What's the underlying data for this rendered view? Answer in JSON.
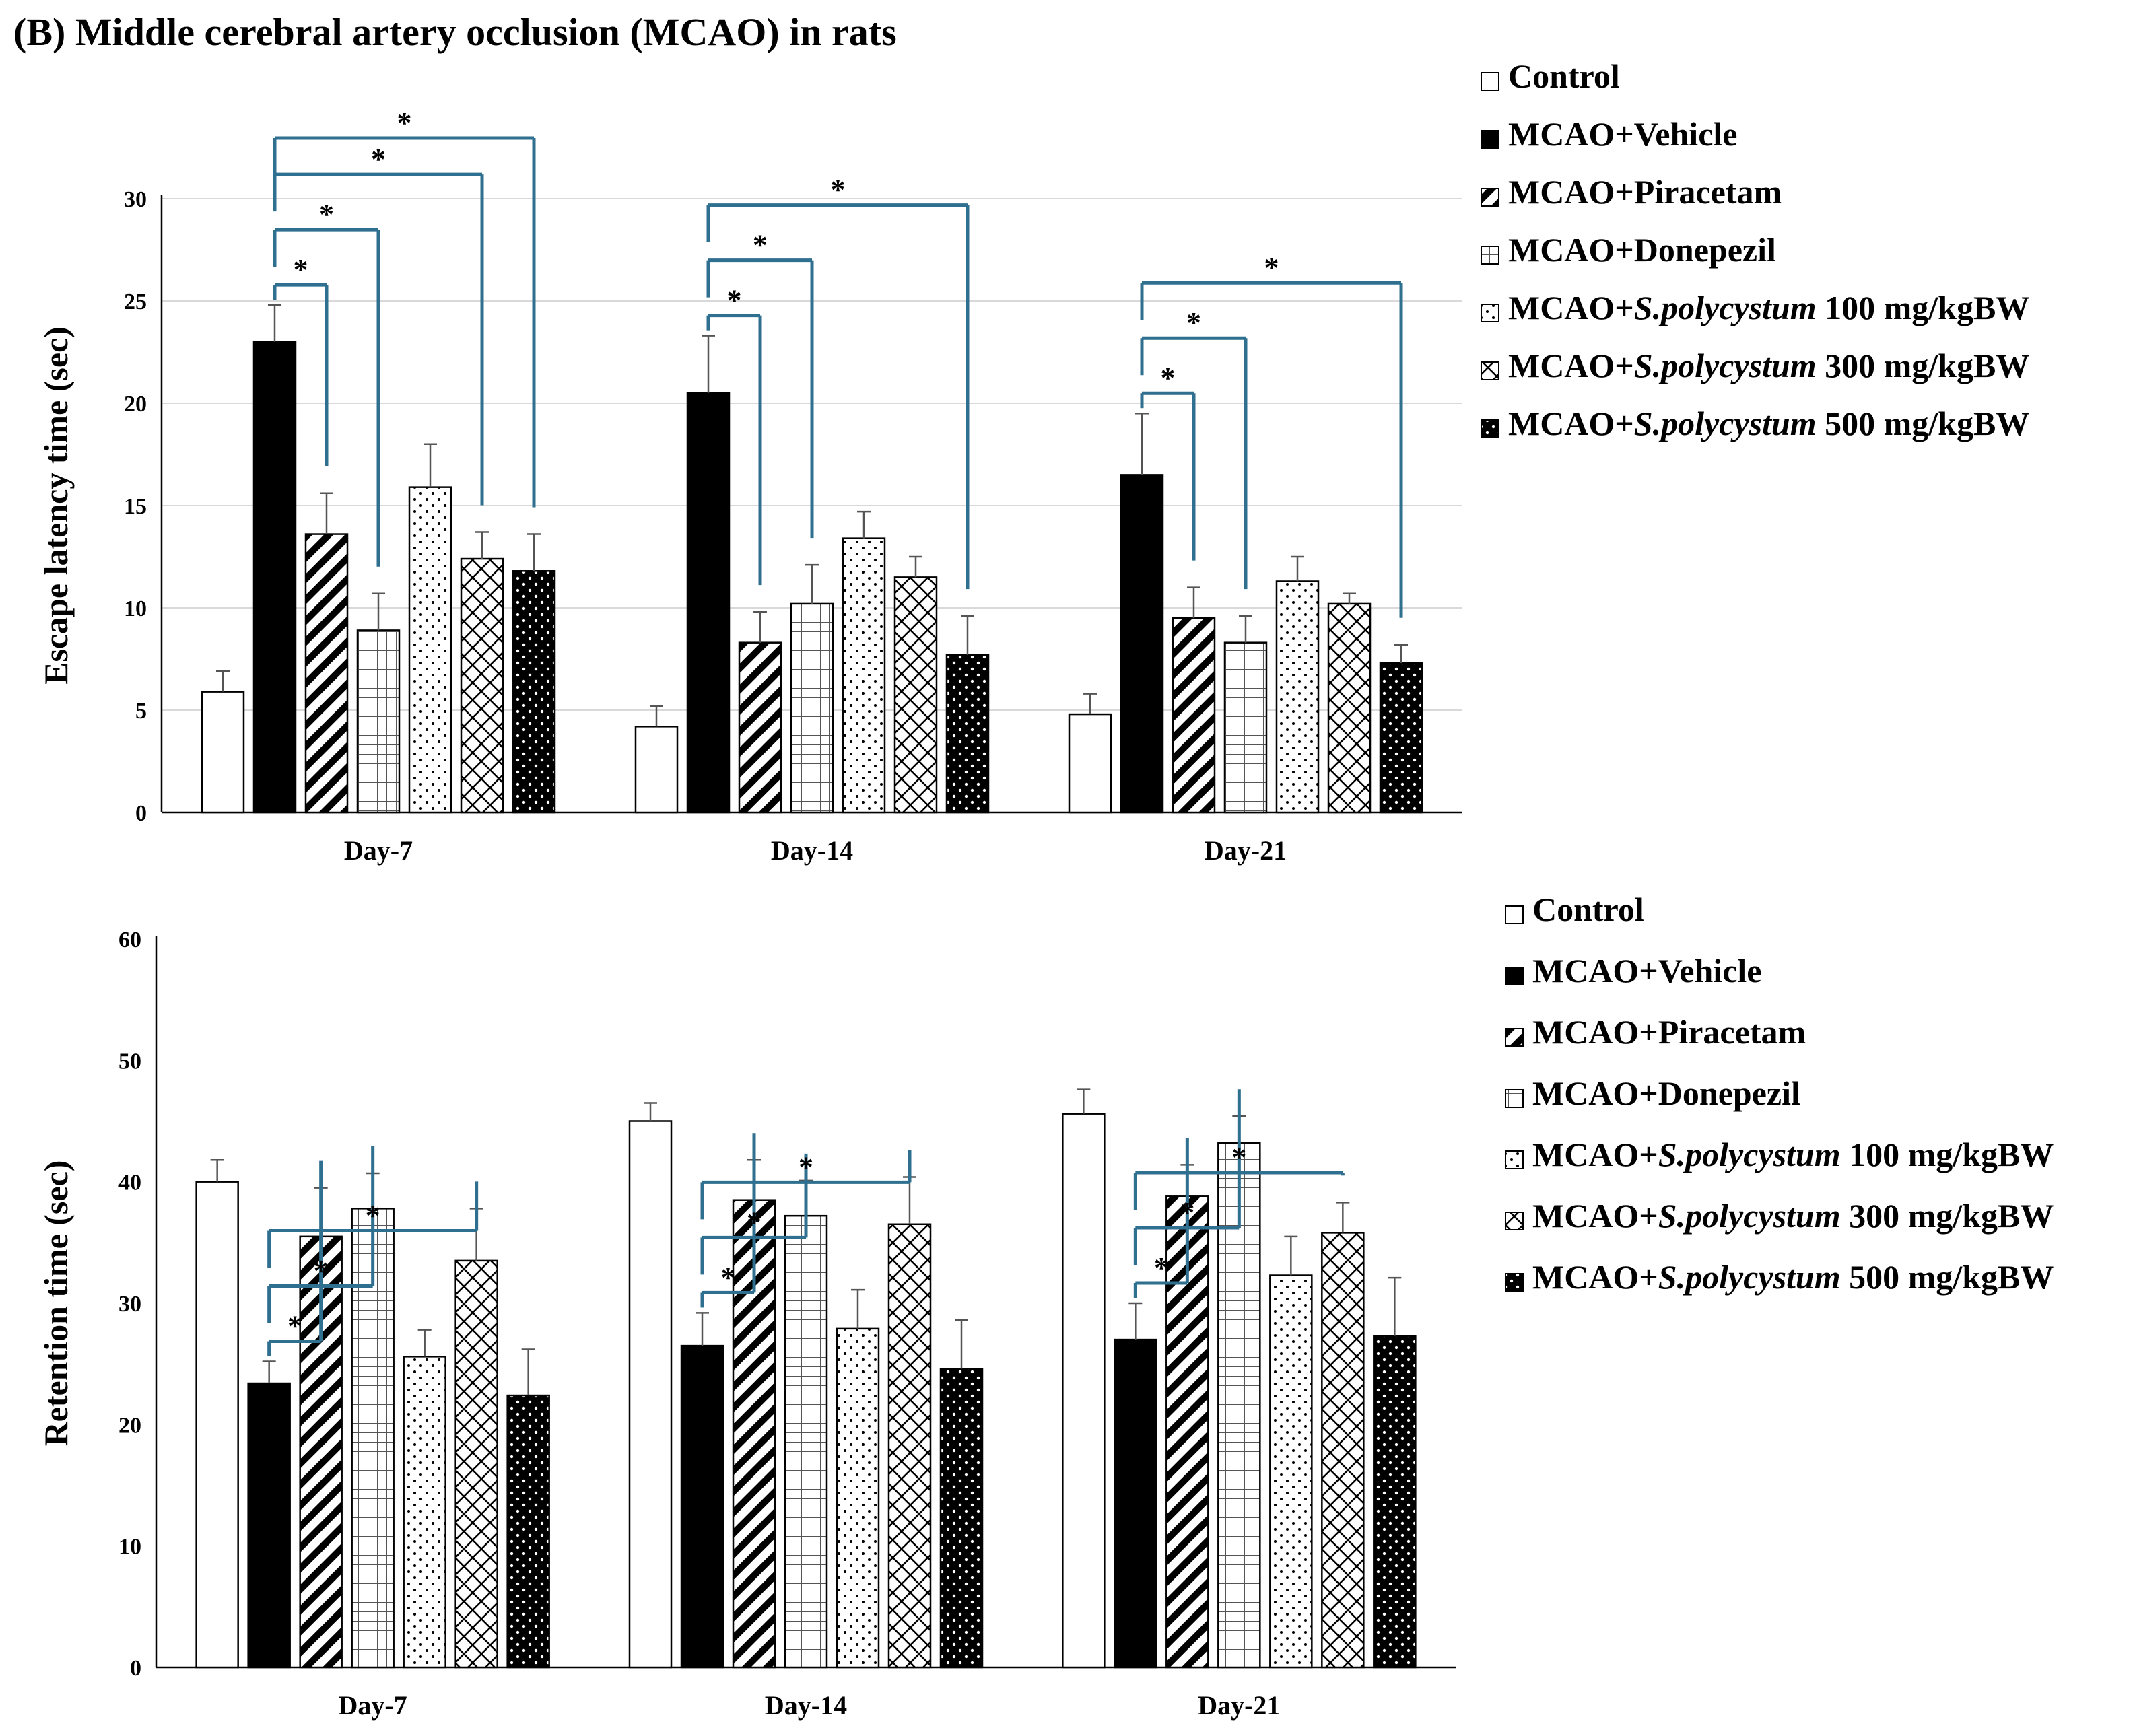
{
  "figure_title": "(B) Middle cerebral artery occlusion (MCAO) in rats",
  "colors": {
    "bracket": "#2f6f8f",
    "bar": "#000000",
    "grid": "#d9d9d9"
  },
  "chart_data": [
    {
      "type": "bar",
      "title": "",
      "ylabel": "Escape latency time (sec)",
      "xlabel": "",
      "ylim": [
        0,
        30
      ],
      "ytick_step": 5,
      "yticks": [
        "0",
        "5",
        "10",
        "15",
        "20",
        "25",
        "30"
      ],
      "grid": true,
      "legend_position": "right",
      "categories": [
        "Day-7",
        "Day-14",
        "Day-21"
      ],
      "series": [
        {
          "name": "Control",
          "legend_prefix": "Control",
          "legend_italic": "",
          "legend_suffix": "",
          "pattern": "white",
          "values": [
            5.9,
            4.2,
            4.8
          ],
          "errors": [
            1.0,
            1.0,
            1.0
          ]
        },
        {
          "name": "MCAO+Vehicle",
          "legend_prefix": "MCAO+Vehicle",
          "legend_italic": "",
          "legend_suffix": "",
          "pattern": "black",
          "values": [
            23.0,
            20.5,
            16.5
          ],
          "errors": [
            1.8,
            2.8,
            3.0
          ]
        },
        {
          "name": "MCAO+Piracetam",
          "legend_prefix": "MCAO+Piracetam",
          "legend_italic": "",
          "legend_suffix": "",
          "pattern": "diag",
          "values": [
            13.6,
            8.3,
            9.5
          ],
          "errors": [
            2.0,
            1.5,
            1.5
          ]
        },
        {
          "name": "MCAO+Donepezil",
          "legend_prefix": "MCAO+Donepezil",
          "legend_italic": "",
          "legend_suffix": "",
          "pattern": "grid",
          "values": [
            8.9,
            10.2,
            8.3
          ],
          "errors": [
            1.8,
            1.9,
            1.3
          ]
        },
        {
          "name": "MCAO+S.polycystum 100 mg/kgBW",
          "legend_prefix": "MCAO+",
          "legend_italic": "S.polycystum",
          "legend_suffix": " 100 mg/kgBW",
          "pattern": "dots",
          "values": [
            15.9,
            13.4,
            11.3
          ],
          "errors": [
            2.1,
            1.3,
            1.2
          ]
        },
        {
          "name": "MCAO+S.polycystum 300 mg/kgBW",
          "legend_prefix": "MCAO+",
          "legend_italic": "S.polycystum",
          "legend_suffix": " 300 mg/kgBW",
          "pattern": "cross",
          "values": [
            12.4,
            11.5,
            10.2
          ],
          "errors": [
            1.3,
            1.0,
            0.5
          ]
        },
        {
          "name": "MCAO+S.polycystum 500 mg/kgBW",
          "legend_prefix": "MCAO+",
          "legend_italic": "S.polycystum",
          "legend_suffix": " 500 mg/kgBW",
          "pattern": "blackdots",
          "values": [
            11.8,
            7.7,
            7.3
          ],
          "errors": [
            1.8,
            1.9,
            0.9
          ]
        }
      ],
      "significance": [
        {
          "category": 0,
          "from": 1,
          "to": 2,
          "label": "*"
        },
        {
          "category": 0,
          "from": 1,
          "to": 3,
          "label": "*"
        },
        {
          "category": 0,
          "from": 1,
          "to": 5,
          "label": "*"
        },
        {
          "category": 0,
          "from": 1,
          "to": 6,
          "label": "*"
        },
        {
          "category": 1,
          "from": 1,
          "to": 2,
          "label": "*"
        },
        {
          "category": 1,
          "from": 1,
          "to": 3,
          "label": "*"
        },
        {
          "category": 1,
          "from": 1,
          "to": 6,
          "label": "*"
        },
        {
          "category": 2,
          "from": 1,
          "to": 2,
          "label": "*"
        },
        {
          "category": 2,
          "from": 1,
          "to": 3,
          "label": "*"
        },
        {
          "category": 2,
          "from": 1,
          "to": 6,
          "label": "*"
        }
      ]
    },
    {
      "type": "bar",
      "title": "",
      "ylabel": "Retention time (sec)",
      "xlabel": "",
      "ylim": [
        0,
        60
      ],
      "ytick_step": 10,
      "yticks": [
        "0",
        "10",
        "20",
        "30",
        "40",
        "50",
        "60"
      ],
      "grid": false,
      "legend_position": "right",
      "categories": [
        "Day-7",
        "Day-14",
        "Day-21"
      ],
      "series": [
        {
          "name": "Control",
          "legend_prefix": "Control",
          "legend_italic": "",
          "legend_suffix": "",
          "pattern": "white",
          "values": [
            40.0,
            45.0,
            45.6
          ],
          "errors": [
            1.8,
            1.5,
            2.0
          ]
        },
        {
          "name": "MCAO+Vehicle",
          "legend_prefix": "MCAO+Vehicle",
          "legend_italic": "",
          "legend_suffix": "",
          "pattern": "black",
          "values": [
            23.4,
            26.5,
            27.0
          ],
          "errors": [
            1.8,
            2.7,
            3.0
          ]
        },
        {
          "name": "MCAO+Piracetam",
          "legend_prefix": "MCAO+Piracetam",
          "legend_italic": "",
          "legend_suffix": "",
          "pattern": "diag",
          "values": [
            35.5,
            38.5,
            38.8
          ],
          "errors": [
            4.0,
            3.3,
            2.6
          ]
        },
        {
          "name": "MCAO+Donepezil",
          "legend_prefix": "MCAO+Donepezil",
          "legend_italic": "",
          "legend_suffix": "",
          "pattern": "grid",
          "values": [
            37.8,
            37.2,
            43.2
          ],
          "errors": [
            2.9,
            2.9,
            2.2
          ]
        },
        {
          "name": "MCAO+S.polycystum 100 mg/kgBW",
          "legend_prefix": "MCAO+",
          "legend_italic": "S.polycystum",
          "legend_suffix": " 100 mg/kgBW",
          "pattern": "dots",
          "values": [
            25.6,
            27.9,
            32.3
          ],
          "errors": [
            2.2,
            3.2,
            3.2
          ]
        },
        {
          "name": "MCAO+S.polycystum 300 mg/kgBW",
          "legend_prefix": "MCAO+",
          "legend_italic": "S.polycystum",
          "legend_suffix": " 300 mg/kgBW",
          "pattern": "cross",
          "values": [
            33.5,
            36.5,
            35.8
          ],
          "errors": [
            4.3,
            3.9,
            2.5
          ]
        },
        {
          "name": "MCAO+S.polycystum 500 mg/kgBW",
          "legend_prefix": "MCAO+",
          "legend_italic": "S.polycystum",
          "legend_suffix": " 500 mg/kgBW",
          "pattern": "blackdots",
          "values": [
            22.4,
            24.6,
            27.3
          ],
          "errors": [
            3.8,
            4.0,
            4.8
          ]
        }
      ],
      "significance": [
        {
          "category": 0,
          "from": 1,
          "to": 2,
          "label": "*"
        },
        {
          "category": 0,
          "from": 1,
          "to": 3,
          "label": "*"
        },
        {
          "category": 0,
          "from": 1,
          "to": 5,
          "label": "*"
        },
        {
          "category": 1,
          "from": 1,
          "to": 2,
          "label": "*"
        },
        {
          "category": 1,
          "from": 1,
          "to": 3,
          "label": "*"
        },
        {
          "category": 1,
          "from": 1,
          "to": 5,
          "label": "*"
        },
        {
          "category": 2,
          "from": 1,
          "to": 2,
          "label": "*"
        },
        {
          "category": 2,
          "from": 1,
          "to": 3,
          "label": "*"
        },
        {
          "category": 2,
          "from": 1,
          "to": 5,
          "label": "*"
        }
      ]
    }
  ]
}
